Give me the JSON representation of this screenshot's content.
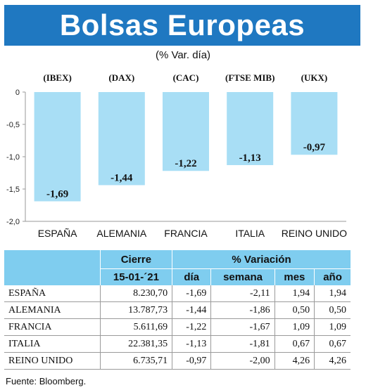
{
  "header": {
    "title": "Bolsas Europeas",
    "subtitle": "(% Var. día)"
  },
  "chart_data": {
    "type": "bar",
    "categories": [
      "ESPAÑA",
      "ALEMANIA",
      "FRANCIA",
      "ITALIA",
      "REINO UNIDO"
    ],
    "index_labels": [
      "(IBEX)",
      "(DAX)",
      "(CAC)",
      "(FTSE MIB)",
      "(UKX)"
    ],
    "values": [
      -1.69,
      -1.44,
      -1.22,
      -1.13,
      -0.97
    ],
    "value_labels": [
      "-1,69",
      "-1,44",
      "-1,22",
      "-1,13",
      "-0,97"
    ],
    "yticks": [
      0,
      -0.5,
      -1.0,
      -1.5,
      -2.0
    ],
    "ytick_labels": [
      "0",
      "-0,5",
      "-1,0",
      "-1,5",
      "-2,0"
    ],
    "ylim": [
      -2.0,
      0
    ],
    "grid": false,
    "bar_color": "#a8def5"
  },
  "table": {
    "group_headers": {
      "close": "Cierre",
      "variation": "% Variación"
    },
    "sub_headers": [
      "15-01-´21",
      "día",
      "semana",
      "mes",
      "año"
    ],
    "rows": [
      {
        "name": "ESPAÑA",
        "cierre": "8.230,70",
        "dia": "-1,69",
        "semana": "-2,11",
        "mes": "1,94",
        "ano": "1,94"
      },
      {
        "name": "ALEMANIA",
        "cierre": "13.787,73",
        "dia": "-1,44",
        "semana": "-1,86",
        "mes": "0,50",
        "ano": "0,50"
      },
      {
        "name": "FRANCIA",
        "cierre": "5.611,69",
        "dia": "-1,22",
        "semana": "-1,67",
        "mes": "1,09",
        "ano": "1,09"
      },
      {
        "name": "ITALIA",
        "cierre": "22.381,35",
        "dia": "-1,13",
        "semana": "-1,81",
        "mes": "0,67",
        "ano": "0,67"
      },
      {
        "name": "REINO UNIDO",
        "cierre": "6.735,71",
        "dia": "-0,97",
        "semana": "-2,00",
        "mes": "4,26",
        "ano": "4,26"
      }
    ]
  },
  "source": "Fuente: Bloomberg.",
  "colors": {
    "title_bg": "#1f78c1",
    "table_header_bg": "#7fcdef"
  }
}
